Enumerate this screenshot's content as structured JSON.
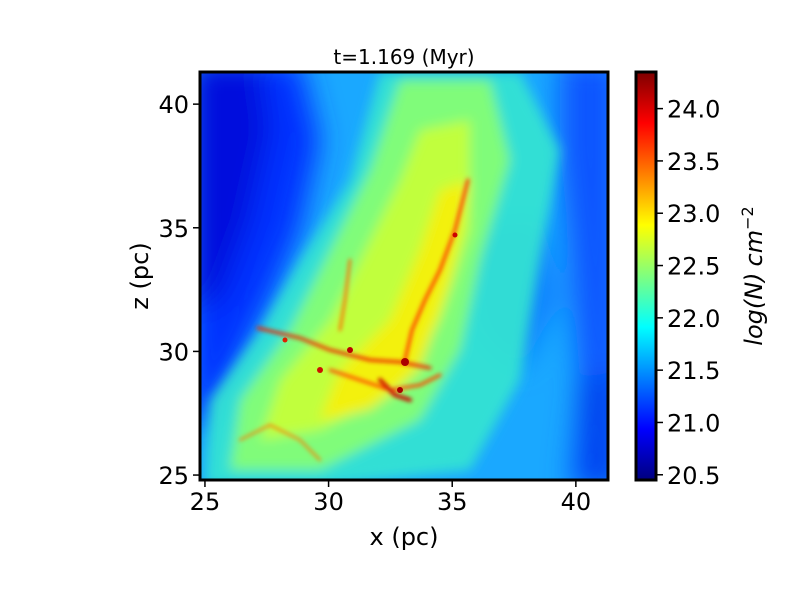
{
  "chart_data": {
    "type": "heatmap",
    "title": "t=1.169 (Myr)",
    "xlabel": "x (pc)",
    "ylabel": "z (pc)",
    "xlim": [
      24.8,
      41.3
    ],
    "ylim": [
      24.8,
      41.3
    ],
    "x_ticks": [
      25,
      30,
      35,
      40
    ],
    "y_ticks": [
      25,
      30,
      35,
      40
    ],
    "colorbar": {
      "label_main": "log(N)",
      "label_unit": "cm",
      "label_exp": "−2",
      "colormap": "jet",
      "range": [
        20.45,
        24.35
      ],
      "ticks": [
        "20.5",
        "21.0",
        "21.5",
        "22.0",
        "22.5",
        "23.0",
        "23.5",
        "24.0"
      ]
    },
    "grid": false,
    "colors": {
      "jet": [
        "#00007f",
        "#0000ff",
        "#007fff",
        "#00ffff",
        "#7fff7f",
        "#ffff00",
        "#ff7f00",
        "#ff0000",
        "#7f0000"
      ]
    }
  }
}
